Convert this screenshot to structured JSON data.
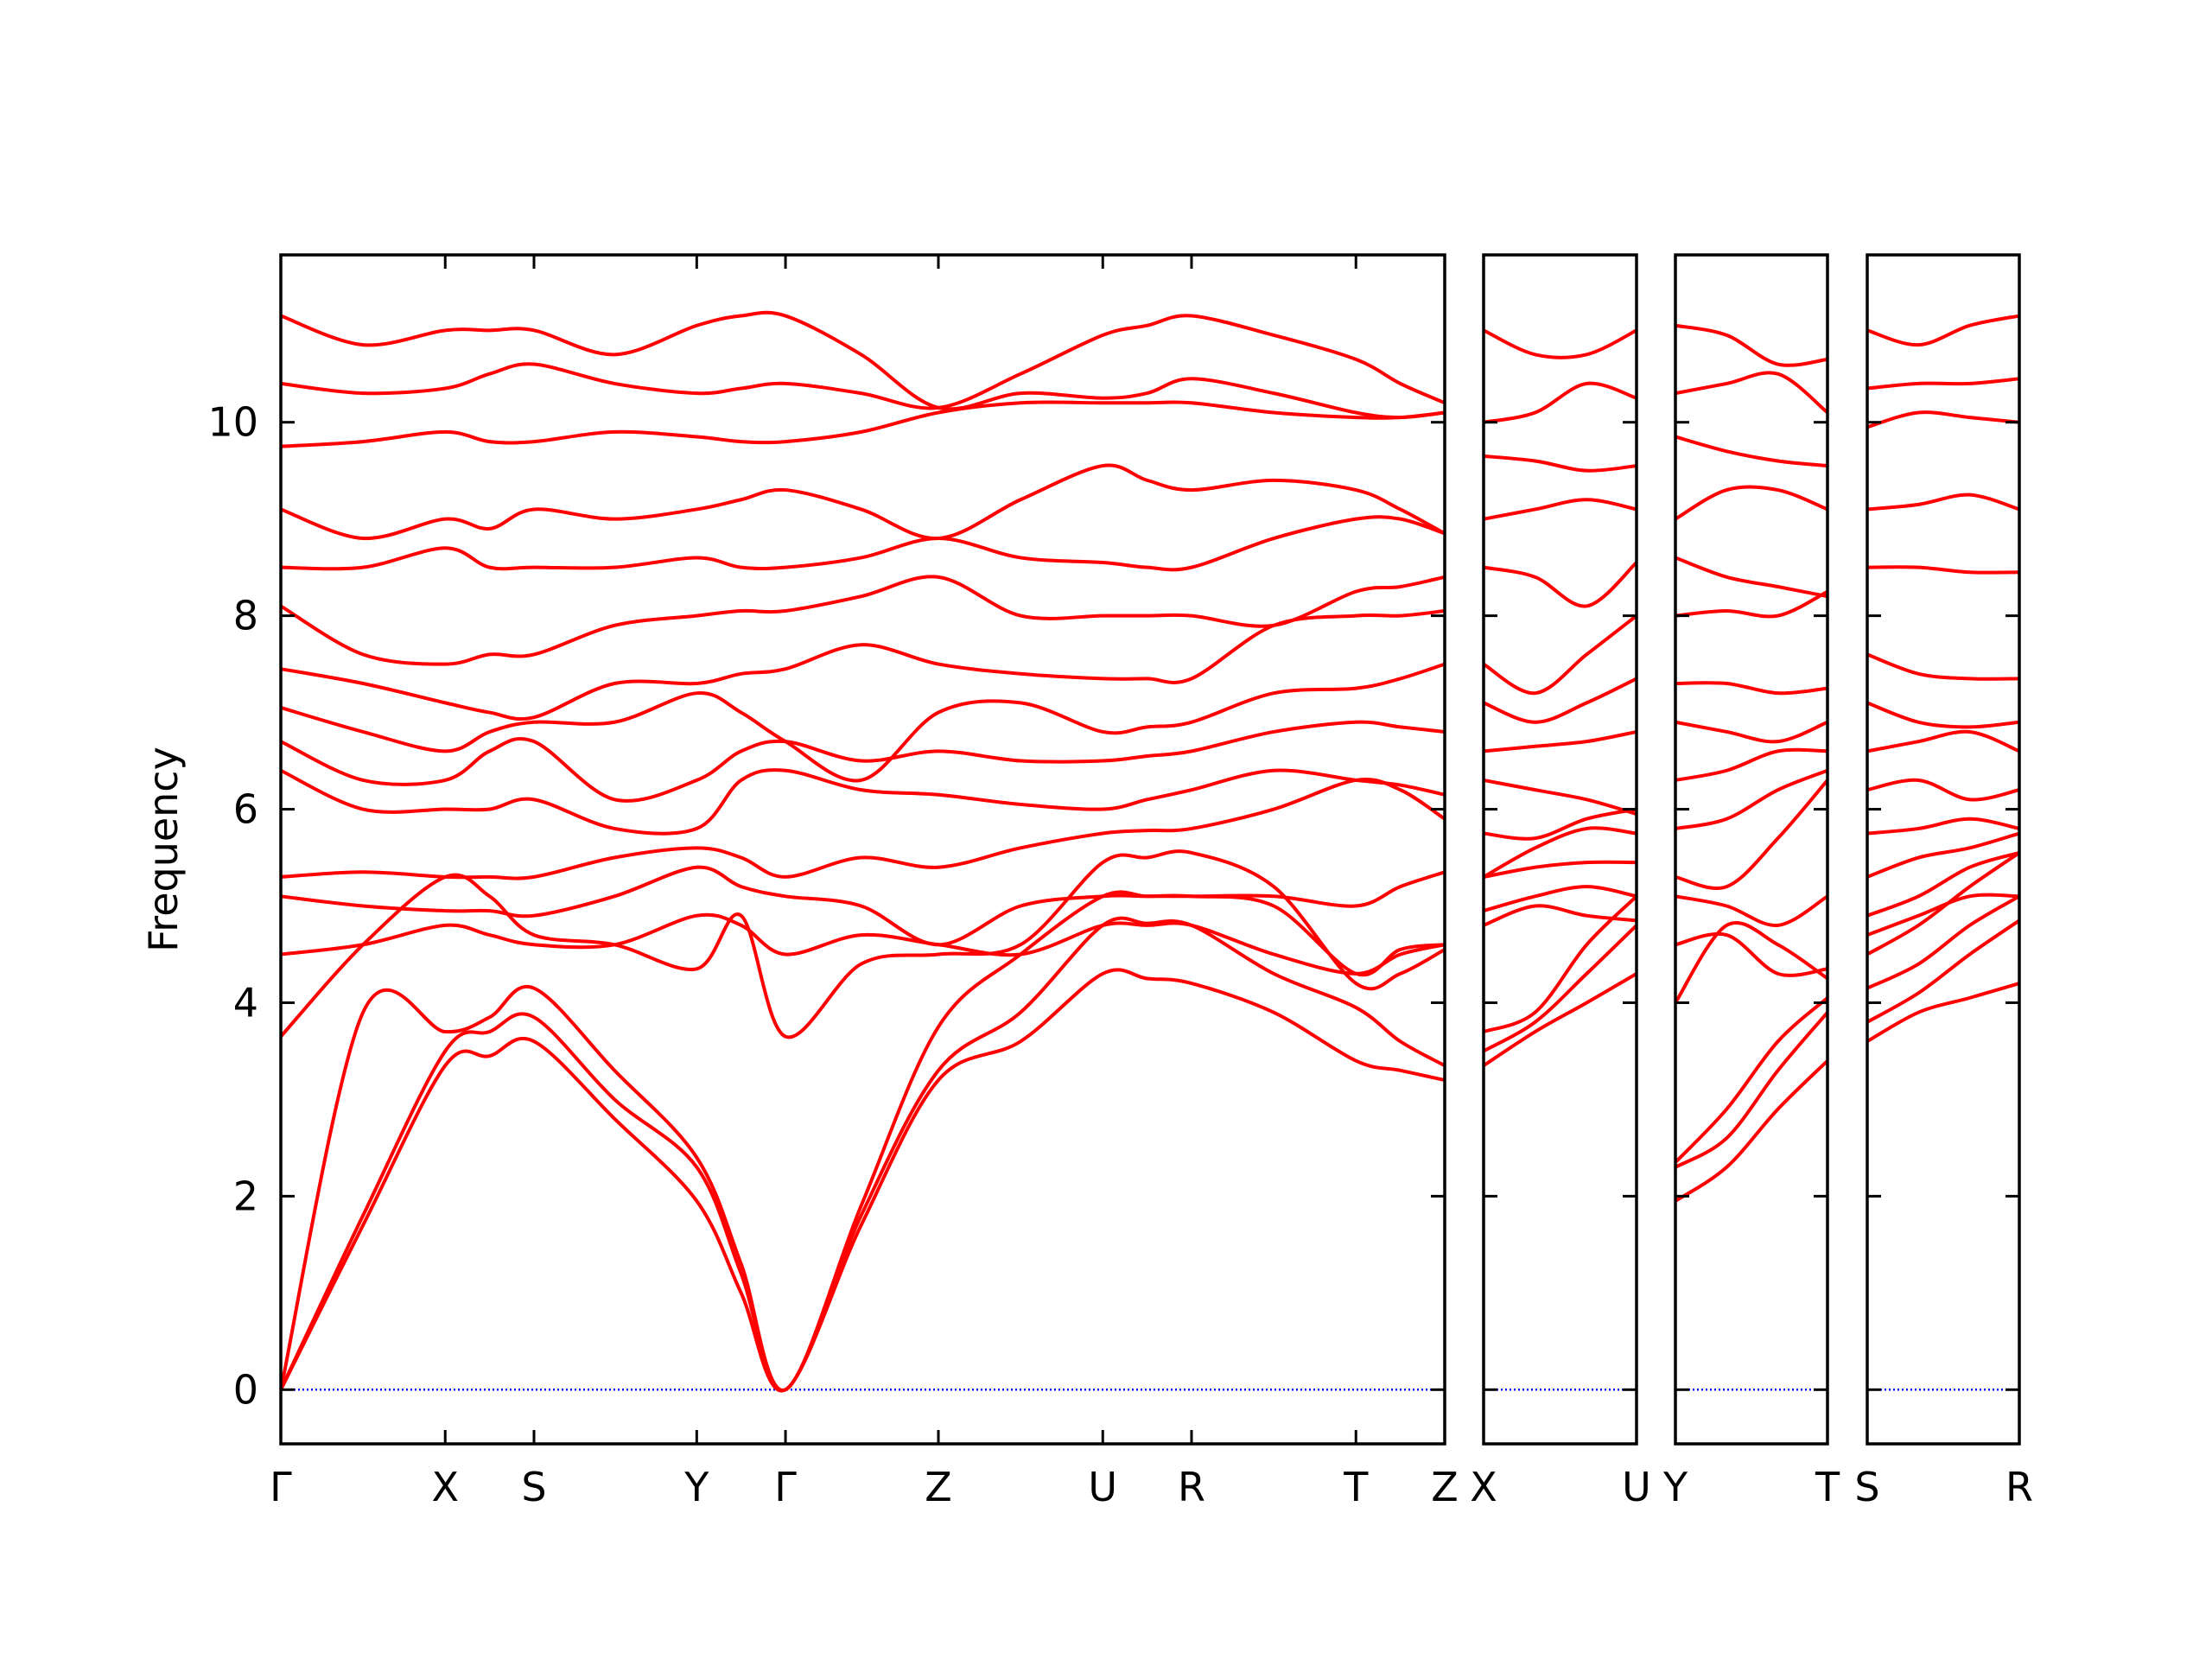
{
  "chart_data": [
    {
      "type": "line",
      "ylabel": "Frequency",
      "color": "#ff0000",
      "ytick_labels": true,
      "reference_line": {
        "y": 0,
        "color": "#0000ff"
      },
      "xlim": [
        0,
        7.08
      ],
      "ylim": [
        -0.56,
        11.73
      ],
      "yticks": [
        0,
        2,
        4,
        6,
        8,
        10
      ],
      "xticks": [
        {
          "value": 0,
          "label": "Γ"
        },
        {
          "value": 1.0,
          "label": "X"
        },
        {
          "value": 1.54,
          "label": "S"
        },
        {
          "value": 2.53,
          "label": "Y"
        },
        {
          "value": 3.07,
          "label": "Γ"
        },
        {
          "value": 4.0,
          "label": "Z"
        },
        {
          "value": 5.0,
          "label": "U"
        },
        {
          "value": 5.54,
          "label": "R"
        },
        {
          "value": 6.54,
          "label": "T"
        },
        {
          "value": 7.08,
          "label": "Z"
        }
      ],
      "x": [
        0,
        0.5,
        1.0,
        1.27,
        1.54,
        2.03,
        2.53,
        2.8,
        3.07,
        3.53,
        4.0,
        4.5,
        5.0,
        5.27,
        5.54,
        6.04,
        6.54,
        6.81,
        7.08
      ],
      "series": [
        {
          "values": [
            0,
            1.7,
            3.35,
            3.45,
            3.6,
            2.8,
            1.95,
            1.0,
            0,
            1.7,
            3.2,
            3.6,
            4.3,
            4.25,
            4.2,
            3.9,
            3.4,
            3.3,
            3.2
          ]
        },
        {
          "values": [
            0,
            1.8,
            3.5,
            3.7,
            3.85,
            3.0,
            2.3,
            1.2,
            0,
            1.8,
            3.3,
            3.9,
            4.8,
            4.82,
            4.8,
            4.3,
            3.95,
            3.6,
            3.35
          ]
        },
        {
          "values": [
            0,
            3.9,
            3.7,
            3.85,
            4.15,
            3.3,
            2.4,
            1.3,
            0,
            1.9,
            3.75,
            4.5,
            5.1,
            5.1,
            5.1,
            5.0,
            4.3,
            4.55,
            4.6
          ]
        },
        {
          "values": [
            3.65,
            4.6,
            5.3,
            5.1,
            4.7,
            4.6,
            4.35,
            4.9,
            3.65,
            4.4,
            4.5,
            4.6,
            5.45,
            5.5,
            5.55,
            5.2,
            4.2,
            4.3,
            4.55
          ]
        },
        {
          "values": [
            4.5,
            4.6,
            4.8,
            4.7,
            4.6,
            4.6,
            4.9,
            4.8,
            4.5,
            4.7,
            4.6,
            4.5,
            4.8,
            4.8,
            4.8,
            4.5,
            4.3,
            4.5,
            4.6
          ]
        },
        {
          "values": [
            5.1,
            5.0,
            4.95,
            4.95,
            4.9,
            5.1,
            5.4,
            5.2,
            5.1,
            5.0,
            4.6,
            5.0,
            5.1,
            5.1,
            5.1,
            5.1,
            5.0,
            5.2,
            5.35
          ]
        },
        {
          "values": [
            5.3,
            5.35,
            5.3,
            5.3,
            5.3,
            5.5,
            5.6,
            5.5,
            5.3,
            5.5,
            5.4,
            5.6,
            5.75,
            5.78,
            5.8,
            6.0,
            6.3,
            6.2,
            5.9
          ]
        },
        {
          "values": [
            6.4,
            6.0,
            6.0,
            6.0,
            6.1,
            5.8,
            5.8,
            6.3,
            6.4,
            6.2,
            6.15,
            6.05,
            6.0,
            6.1,
            6.2,
            6.4,
            6.3,
            6.25,
            6.15
          ]
        },
        {
          "values": [
            6.7,
            6.3,
            6.3,
            6.6,
            6.7,
            6.1,
            6.3,
            6.6,
            6.7,
            6.5,
            6.6,
            6.5,
            6.5,
            6.55,
            6.6,
            6.8,
            6.9,
            6.85,
            6.8
          ]
        },
        {
          "values": [
            7.05,
            6.8,
            6.6,
            6.8,
            6.9,
            6.9,
            7.2,
            7.0,
            6.7,
            6.3,
            7.0,
            7.1,
            6.8,
            6.85,
            6.9,
            7.2,
            7.25,
            7.35,
            7.5
          ]
        },
        {
          "values": [
            7.45,
            7.3,
            7.1,
            7.0,
            6.95,
            7.3,
            7.3,
            7.4,
            7.45,
            7.7,
            7.5,
            7.4,
            7.35,
            7.35,
            7.35,
            7.9,
            8.0,
            8.0,
            8.05
          ]
        },
        {
          "values": [
            8.1,
            7.6,
            7.5,
            7.6,
            7.6,
            7.9,
            8.0,
            8.05,
            8.05,
            8.2,
            8.4,
            8.0,
            8.0,
            8.0,
            8.0,
            7.9,
            8.25,
            8.3,
            8.4
          ]
        },
        {
          "values": [
            8.5,
            8.5,
            8.7,
            8.5,
            8.5,
            8.5,
            8.6,
            8.5,
            8.5,
            8.6,
            8.8,
            8.6,
            8.55,
            8.5,
            8.5,
            8.8,
            9.0,
            9.0,
            8.85
          ]
        },
        {
          "values": [
            9.1,
            8.8,
            9.0,
            8.9,
            9.1,
            9.0,
            9.1,
            9.2,
            9.3,
            9.1,
            8.8,
            9.2,
            9.55,
            9.4,
            9.3,
            9.4,
            9.3,
            9.1,
            8.85
          ]
        },
        {
          "values": [
            9.75,
            9.8,
            9.9,
            9.8,
            9.8,
            9.9,
            9.85,
            9.8,
            9.8,
            9.9,
            10.1,
            10.2,
            10.2,
            10.2,
            10.2,
            10.1,
            10.05,
            10.05,
            10.1
          ]
        },
        {
          "values": [
            10.4,
            10.3,
            10.35,
            10.5,
            10.6,
            10.4,
            10.3,
            10.35,
            10.4,
            10.3,
            10.15,
            10.5,
            10.9,
            11.0,
            11.1,
            10.9,
            10.65,
            10.4,
            10.2
          ]
        },
        {
          "values": [
            11.1,
            10.8,
            10.95,
            10.95,
            10.95,
            10.7,
            11.0,
            11.1,
            11.1,
            10.7,
            10.15,
            10.3,
            10.25,
            10.3,
            10.45,
            10.3,
            10.1,
            10.05,
            10.1
          ]
        }
      ]
    },
    {
      "type": "line",
      "color": "#ff0000",
      "ytick_labels": false,
      "reference_line": {
        "y": 0,
        "color": "#0000ff"
      },
      "xlim": [
        0,
        0.92
      ],
      "ylim": [
        -0.56,
        11.73
      ],
      "yticks": [
        0,
        2,
        4,
        6,
        8,
        10
      ],
      "xticks": [
        {
          "value": 0,
          "label": "X"
        },
        {
          "value": 0.92,
          "label": "U"
        }
      ],
      "x": [
        0,
        0.31,
        0.62,
        0.92
      ],
      "series": [
        {
          "values": [
            3.35,
            3.7,
            4.0,
            4.3
          ]
        },
        {
          "values": [
            3.5,
            3.8,
            4.3,
            4.8
          ]
        },
        {
          "values": [
            3.7,
            3.9,
            4.6,
            5.1
          ]
        },
        {
          "values": [
            5.3,
            5.4,
            5.45,
            5.45
          ]
        },
        {
          "values": [
            4.8,
            5.0,
            4.9,
            4.85
          ]
        },
        {
          "values": [
            4.95,
            5.1,
            5.2,
            5.1
          ]
        },
        {
          "values": [
            5.3,
            5.6,
            5.8,
            5.75
          ]
        },
        {
          "values": [
            5.75,
            5.7,
            5.9,
            6.0
          ]
        },
        {
          "values": [
            6.3,
            6.2,
            6.1,
            5.95
          ]
        },
        {
          "values": [
            6.6,
            6.65,
            6.7,
            6.8
          ]
        },
        {
          "values": [
            7.1,
            6.9,
            7.1,
            7.35
          ]
        },
        {
          "values": [
            7.5,
            7.2,
            7.6,
            8.0
          ]
        },
        {
          "values": [
            8.5,
            8.4,
            8.1,
            8.55
          ]
        },
        {
          "values": [
            9.0,
            9.1,
            9.2,
            9.1
          ]
        },
        {
          "values": [
            9.65,
            9.6,
            9.5,
            9.55
          ]
        },
        {
          "values": [
            10.0,
            10.1,
            10.4,
            10.25
          ]
        },
        {
          "values": [
            10.95,
            10.7,
            10.7,
            10.95
          ]
        }
      ]
    },
    {
      "type": "line",
      "color": "#ff0000",
      "ytick_labels": false,
      "reference_line": {
        "y": 0,
        "color": "#0000ff"
      },
      "xlim": [
        0,
        0.92
      ],
      "ylim": [
        -0.56,
        11.73
      ],
      "yticks": [
        0,
        2,
        4,
        6,
        8,
        10
      ],
      "xticks": [
        {
          "value": 0,
          "label": "Y"
        },
        {
          "value": 0.92,
          "label": "T"
        }
      ],
      "x": [
        0,
        0.31,
        0.62,
        0.92
      ],
      "series": [
        {
          "values": [
            1.95,
            2.3,
            2.9,
            3.4
          ]
        },
        {
          "values": [
            2.3,
            2.6,
            3.3,
            3.9
          ]
        },
        {
          "values": [
            2.35,
            2.9,
            3.6,
            4.05
          ]
        },
        {
          "values": [
            4.0,
            4.8,
            4.6,
            4.25
          ]
        },
        {
          "values": [
            4.6,
            4.7,
            4.3,
            4.35
          ]
        },
        {
          "values": [
            5.1,
            5.0,
            4.8,
            5.1
          ]
        },
        {
          "values": [
            5.3,
            5.2,
            5.7,
            6.3
          ]
        },
        {
          "values": [
            5.8,
            5.9,
            6.2,
            6.4
          ]
        },
        {
          "values": [
            6.3,
            6.4,
            6.6,
            6.6
          ]
        },
        {
          "values": [
            6.9,
            6.8,
            6.7,
            6.9
          ]
        },
        {
          "values": [
            7.3,
            7.3,
            7.2,
            7.25
          ]
        },
        {
          "values": [
            8.0,
            8.05,
            8.0,
            8.25
          ]
        },
        {
          "values": [
            8.6,
            8.4,
            8.3,
            8.2
          ]
        },
        {
          "values": [
            9.0,
            9.3,
            9.3,
            9.1
          ]
        },
        {
          "values": [
            9.85,
            9.7,
            9.6,
            9.55
          ]
        },
        {
          "values": [
            10.3,
            10.4,
            10.5,
            10.1
          ]
        },
        {
          "values": [
            11.0,
            10.9,
            10.6,
            10.65
          ]
        }
      ]
    },
    {
      "type": "line",
      "color": "#ff0000",
      "ytick_labels": false,
      "reference_line": {
        "y": 0,
        "color": "#0000ff"
      },
      "xlim": [
        0,
        0.92
      ],
      "ylim": [
        -0.56,
        11.73
      ],
      "yticks": [
        0,
        2,
        4,
        6,
        8,
        10
      ],
      "xticks": [
        {
          "value": 0,
          "label": "S"
        },
        {
          "value": 0.92,
          "label": "R"
        }
      ],
      "x": [
        0,
        0.31,
        0.62,
        0.92
      ],
      "series": [
        {
          "values": [
            3.6,
            3.9,
            4.05,
            4.2
          ]
        },
        {
          "values": [
            3.8,
            4.1,
            4.5,
            4.85
          ]
        },
        {
          "values": [
            4.15,
            4.4,
            4.8,
            5.1
          ]
        },
        {
          "values": [
            4.5,
            4.8,
            5.2,
            5.55
          ]
        },
        {
          "values": [
            4.7,
            4.9,
            5.1,
            5.1
          ]
        },
        {
          "values": [
            4.9,
            5.1,
            5.4,
            5.55
          ]
        },
        {
          "values": [
            5.3,
            5.5,
            5.6,
            5.75
          ]
        },
        {
          "values": [
            5.75,
            5.8,
            5.9,
            5.8
          ]
        },
        {
          "values": [
            6.2,
            6.3,
            6.1,
            6.2
          ]
        },
        {
          "values": [
            6.6,
            6.7,
            6.8,
            6.6
          ]
        },
        {
          "values": [
            7.1,
            6.9,
            6.85,
            6.9
          ]
        },
        {
          "values": [
            7.6,
            7.4,
            7.35,
            7.35
          ]
        },
        {
          "values": [
            8.5,
            8.5,
            8.45,
            8.45
          ]
        },
        {
          "values": [
            9.1,
            9.15,
            9.25,
            9.1
          ]
        },
        {
          "values": [
            9.95,
            10.1,
            10.05,
            10.0
          ]
        },
        {
          "values": [
            10.35,
            10.4,
            10.4,
            10.45
          ]
        },
        {
          "values": [
            10.95,
            10.8,
            11.0,
            11.1
          ]
        }
      ]
    }
  ]
}
